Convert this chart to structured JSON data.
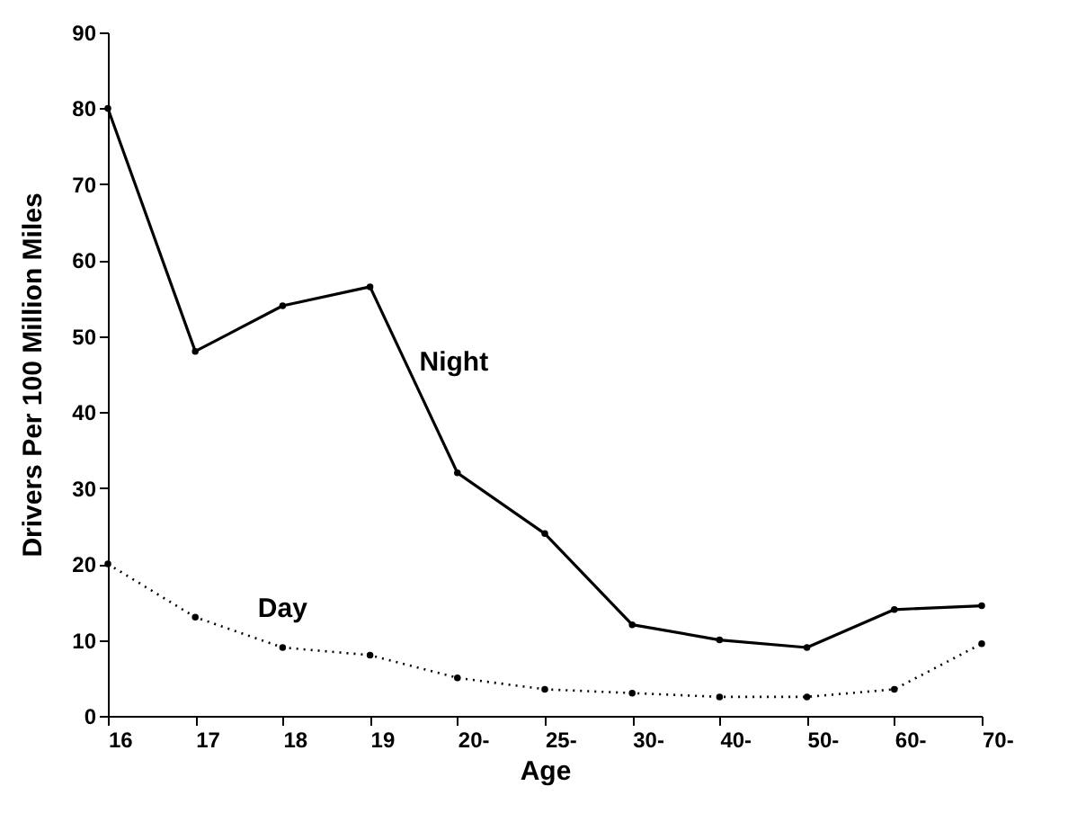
{
  "chart_data": {
    "type": "line",
    "xlabel": "Age",
    "ylabel": "Drivers Per 100 Million Miles",
    "categories": [
      "16",
      "17",
      "18",
      "19",
      "20-",
      "25-",
      "30-",
      "40-",
      "50-",
      "60-",
      "70-"
    ],
    "series": [
      {
        "name": "Night",
        "color": "#000000",
        "line_style": "solid",
        "values": [
          80,
          48,
          54,
          56.5,
          32,
          24,
          12,
          10,
          9,
          14,
          14.5
        ]
      },
      {
        "name": "Day",
        "color": "#000000",
        "line_style": "dotted",
        "values": [
          20,
          13,
          9,
          8,
          5,
          3.5,
          3,
          2.5,
          2.5,
          3.5,
          9.5
        ]
      }
    ],
    "ylim": [
      0,
      90
    ],
    "yticks": [
      0,
      10,
      20,
      30,
      40,
      50,
      60,
      70,
      80,
      90
    ],
    "grid": false,
    "marker": "circle"
  }
}
